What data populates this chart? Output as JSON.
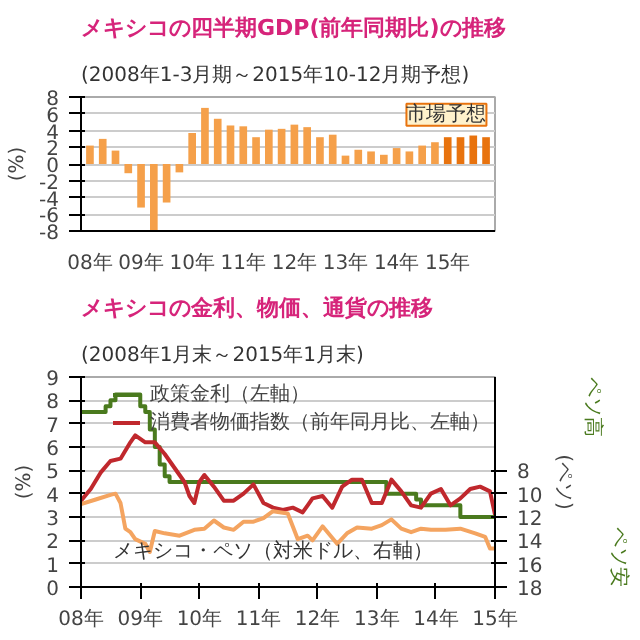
{
  "chart_data": [
    {
      "type": "bar",
      "title": "メキシコの四半期GDP(前年同期比)の推移",
      "subtitle": "(2008年1-3月期～2015年10-12月期予想)",
      "ylabel": "(%)",
      "categories": [
        "08年",
        null,
        null,
        null,
        "09年",
        null,
        null,
        null,
        "10年",
        null,
        null,
        null,
        "11年",
        null,
        null,
        null,
        "12年",
        null,
        null,
        null,
        "13年",
        null,
        null,
        null,
        "14年",
        null,
        null,
        null,
        "15年",
        null,
        null,
        null
      ],
      "values": [
        2.2,
        3.0,
        1.6,
        -1.1,
        -5.2,
        -7.9,
        -4.6,
        -1.0,
        3.7,
        6.7,
        5.4,
        4.6,
        4.5,
        3.2,
        4.1,
        4.2,
        4.7,
        4.4,
        3.2,
        3.5,
        1.0,
        1.7,
        1.5,
        1.1,
        1.9,
        1.5,
        2.2,
        2.6,
        3.2,
        3.2,
        3.4,
        3.2
      ],
      "colors": [
        "#f5a04a",
        "#f5a04a",
        "#f5a04a",
        "#f5a04a",
        "#f5a04a",
        "#f5a04a",
        "#f5a04a",
        "#f5a04a",
        "#f5a04a",
        "#f5a04a",
        "#f5a04a",
        "#f5a04a",
        "#f5a04a",
        "#f5a04a",
        "#f5a04a",
        "#f5a04a",
        "#f5a04a",
        "#f5a04a",
        "#f5a04a",
        "#f5a04a",
        "#f5a04a",
        "#f5a04a",
        "#f5a04a",
        "#f5a04a",
        "#f5a04a",
        "#f5a04a",
        "#f5a04a",
        "#f5a04a",
        "#e8730e",
        "#e8730e",
        "#e8730e",
        "#e8730e"
      ],
      "ylim": [
        -8,
        8
      ],
      "yticks": [
        -8,
        -6,
        -4,
        -2,
        0,
        2,
        4,
        6,
        8
      ],
      "grid": "y",
      "annotations": [
        "市場予想"
      ]
    },
    {
      "type": "line",
      "title": "メキシコの金利、物価、通貨の推移",
      "subtitle": "(2008年1月末～2015年1月末)",
      "ylabel": "(%)",
      "y2label": "(ペソ)",
      "xlim": [
        "2008-01",
        "2015-01"
      ],
      "xticks": [
        {
          "value": "2008-01",
          "label": "08年"
        },
        {
          "value": "2009-01",
          "label": "09年"
        },
        {
          "value": "2010-01",
          "label": "10年"
        },
        {
          "value": "2011-01",
          "label": "11年"
        },
        {
          "value": "2012-01",
          "label": "12年"
        },
        {
          "value": "2013-01",
          "label": "13年"
        },
        {
          "value": "2014-01",
          "label": "14年"
        },
        {
          "value": "2015-01",
          "label": "15年"
        }
      ],
      "ylim": [
        0,
        9
      ],
      "yticks": [
        0,
        1,
        2,
        3,
        4,
        5,
        6,
        7,
        8,
        9
      ],
      "y2lim": [
        18,
        0
      ],
      "y2ticks": [
        8,
        10,
        12,
        14,
        16,
        18
      ],
      "grid": "y",
      "legend": "top right",
      "series": [
        {
          "name": "政策金利（左軸）",
          "type": "step",
          "color": "#4a7a1e",
          "x": [
            "2008-01",
            "2008-06",
            "2008-07",
            "2008-08",
            "2009-01",
            "2009-02",
            "2009-03",
            "2009-04",
            "2009-05",
            "2009-06",
            "2009-07",
            "2013-03",
            "2013-09",
            "2013-10",
            "2014-06",
            "2015-01"
          ],
          "values": [
            7.5,
            7.75,
            8.0,
            8.25,
            7.75,
            7.5,
            6.75,
            6.0,
            5.25,
            4.75,
            4.5,
            4.0,
            3.75,
            3.5,
            3.0,
            3.0
          ]
        },
        {
          "name": "消費者物価指数（前年同月比、左軸）",
          "color": "#c0282d",
          "x": [
            "2008-01",
            "2008-03",
            "2008-05",
            "2008-07",
            "2008-09",
            "2008-11",
            "2008-12",
            "2009-02",
            "2009-04",
            "2009-06",
            "2009-08",
            "2009-10",
            "2009-11",
            "2009-12",
            "2010-01",
            "2010-02",
            "2010-04",
            "2010-06",
            "2010-08",
            "2010-10",
            "2010-12",
            "2011-02",
            "2011-04",
            "2011-06",
            "2011-08",
            "2011-10",
            "2011-11",
            "2011-12",
            "2012-02",
            "2012-04",
            "2012-06",
            "2012-08",
            "2012-10",
            "2012-12",
            "2013-02",
            "2013-04",
            "2013-06",
            "2013-08",
            "2013-10",
            "2013-12",
            "2014-02",
            "2014-04",
            "2014-06",
            "2014-08",
            "2014-10",
            "2014-12",
            "2015-01"
          ],
          "values": [
            3.7,
            4.2,
            4.9,
            5.4,
            5.5,
            6.2,
            6.5,
            6.2,
            6.2,
            5.7,
            5.1,
            4.5,
            3.9,
            3.6,
            4.5,
            4.8,
            4.3,
            3.7,
            3.7,
            4.0,
            4.4,
            3.6,
            3.4,
            3.3,
            3.4,
            3.2,
            3.5,
            3.8,
            3.9,
            3.4,
            4.3,
            4.6,
            4.6,
            3.6,
            3.6,
            4.6,
            4.1,
            3.5,
            3.4,
            4.0,
            4.2,
            3.5,
            3.8,
            4.2,
            4.3,
            4.1,
            3.1
          ]
        },
        {
          "name": "メキシコ・ペソ（対米ドル、右軸）",
          "axis": "y2",
          "color": "#f4a460",
          "x": [
            "2008-01",
            "2008-04",
            "2008-07",
            "2008-08",
            "2008-09",
            "2008-10",
            "2008-11",
            "2008-12",
            "2009-02",
            "2009-03",
            "2009-04",
            "2009-06",
            "2009-09",
            "2009-12",
            "2010-02",
            "2010-04",
            "2010-06",
            "2010-08",
            "2010-10",
            "2010-12",
            "2011-02",
            "2011-04",
            "2011-07",
            "2011-09",
            "2011-11",
            "2011-12",
            "2012-02",
            "2012-05",
            "2012-07",
            "2012-09",
            "2012-12",
            "2013-02",
            "2013-04",
            "2013-06",
            "2013-08",
            "2013-10",
            "2013-12",
            "2014-03",
            "2014-06",
            "2014-09",
            "2014-11",
            "2014-12",
            "2015-01"
          ],
          "values": [
            10.9,
            10.5,
            10.1,
            10.0,
            10.8,
            13.0,
            13.3,
            13.9,
            14.3,
            15.0,
            13.2,
            13.4,
            13.6,
            13.1,
            13.0,
            12.3,
            12.9,
            13.1,
            12.4,
            12.4,
            12.1,
            11.5,
            11.7,
            13.9,
            13.6,
            14.0,
            12.8,
            14.3,
            13.4,
            12.9,
            13.0,
            12.7,
            12.2,
            13.0,
            13.3,
            13.0,
            13.1,
            13.1,
            13.0,
            13.4,
            13.7,
            14.7,
            14.7
          ]
        }
      ],
      "annotations": [
        "ペソ高",
        "ペソ安"
      ]
    }
  ]
}
